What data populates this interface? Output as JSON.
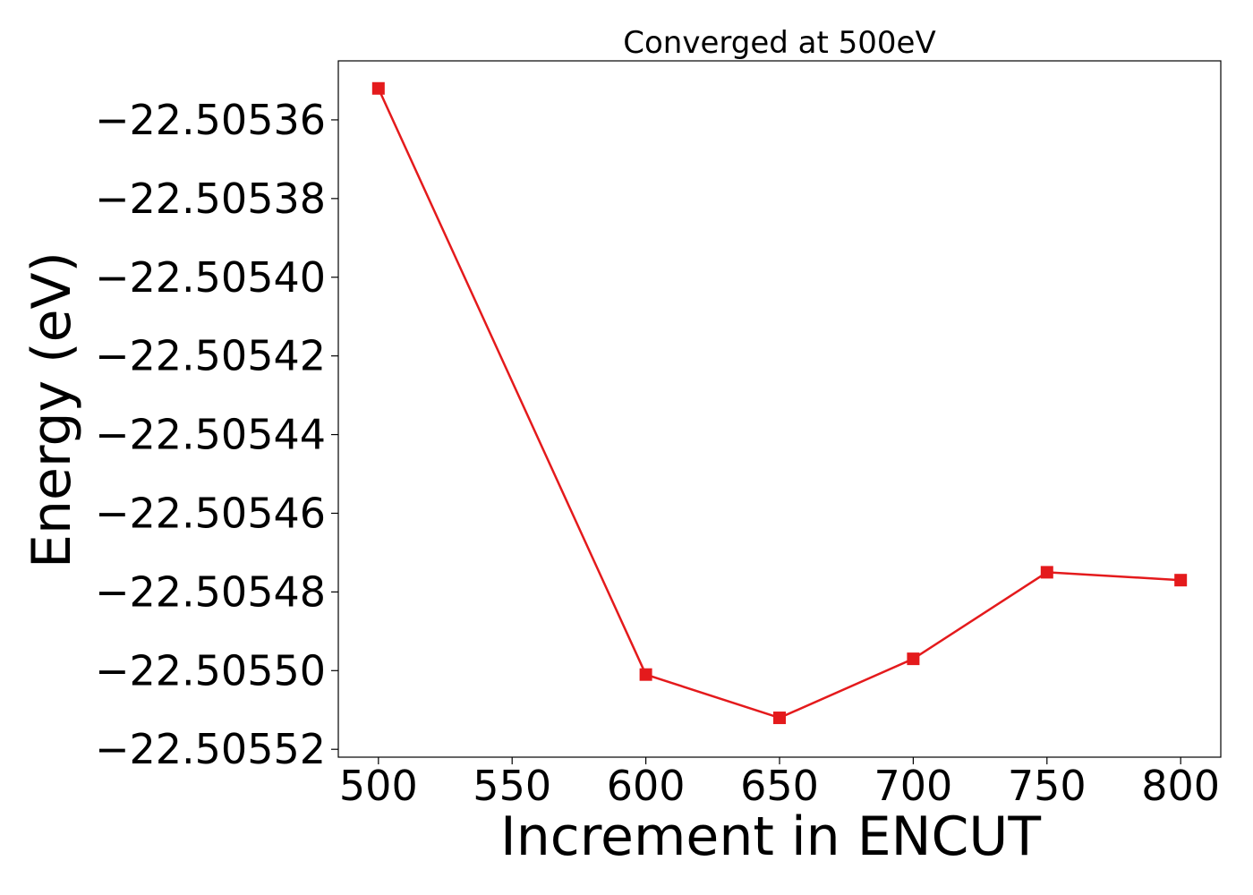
{
  "chart_data": {
    "type": "line",
    "title": "Converged at 500eV",
    "xlabel": "Increment in ENCUT",
    "ylabel": "Energy (eV)",
    "x": [
      500,
      600,
      650,
      700,
      750,
      800
    ],
    "series": [
      {
        "values": [
          -22.505352,
          -22.505501,
          -22.505512,
          -22.505497,
          -22.505475,
          -22.505477
        ],
        "color": "#e41a1c",
        "marker": "square"
      }
    ],
    "xlim": [
      485,
      815
    ],
    "ylim": [
      -22.505522,
      -22.505345
    ],
    "xticks": [
      500,
      550,
      600,
      650,
      700,
      750,
      800
    ],
    "xtick_labels": [
      "500",
      "550",
      "600",
      "650",
      "700",
      "750",
      "800"
    ],
    "yticks": [
      -22.50536,
      -22.50538,
      -22.5054,
      -22.50542,
      -22.50544,
      -22.50546,
      -22.50548,
      -22.5055,
      -22.50552
    ],
    "ytick_labels": [
      "−22.50536",
      "−22.50538",
      "−22.50540",
      "−22.50542",
      "−22.50544",
      "−22.50546",
      "−22.50548",
      "−22.50550",
      "−22.50552"
    ],
    "grid": false,
    "legend": false
  }
}
